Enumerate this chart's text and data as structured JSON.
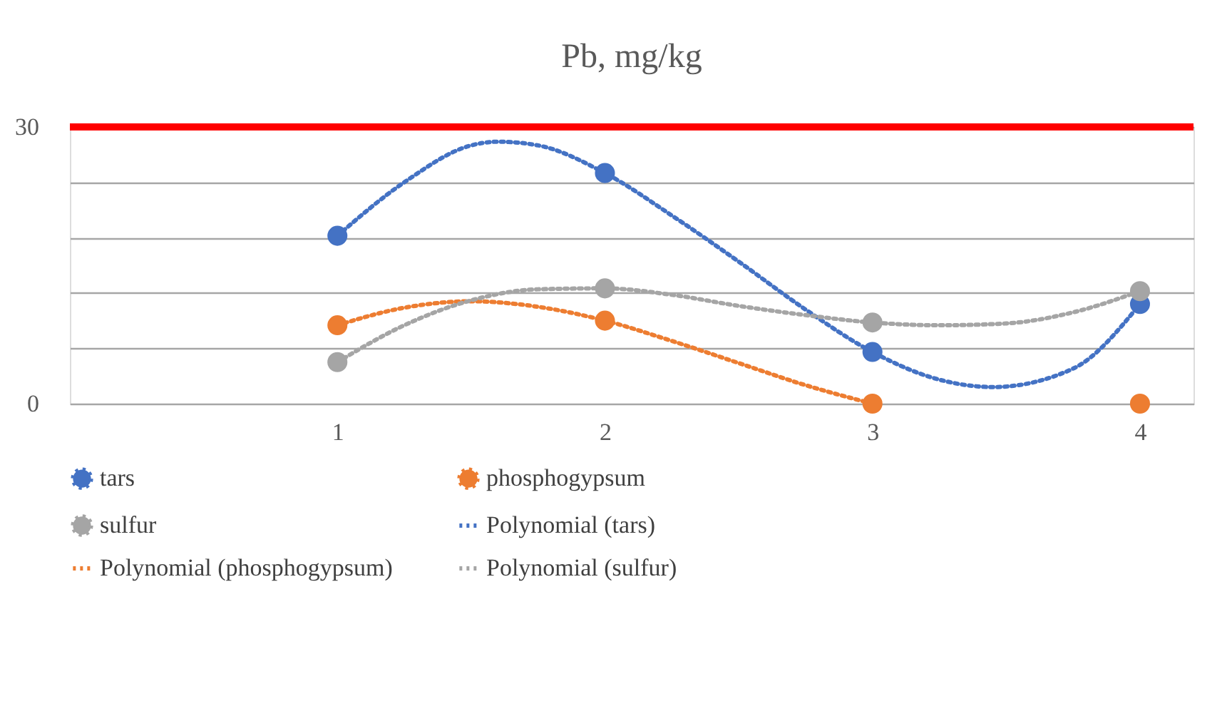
{
  "chart_data": {
    "type": "scatter",
    "title": "Pb, mg/kg",
    "x": [
      1,
      2,
      3,
      4
    ],
    "xlim": [
      0,
      4.2
    ],
    "xticks": [
      1,
      2,
      3,
      4
    ],
    "ylim": [
      0,
      30
    ],
    "yticks": [
      0,
      {
        "value": 6,
        "label": null
      },
      {
        "value": 12,
        "label": null
      },
      {
        "value": 18,
        "label": null
      },
      {
        "value": 24,
        "label": null
      },
      30
    ],
    "grid": "y",
    "legend": "bottom",
    "series": [
      {
        "name": "tars",
        "type": "scatter",
        "marker": "circle",
        "color": "#4472c4",
        "values": [
          18.2,
          25.0,
          5.6,
          10.8
        ]
      },
      {
        "name": "phosphogypsum",
        "type": "scatter",
        "marker": "circle",
        "color": "#ed7d31",
        "values": [
          8.5,
          9.0,
          0,
          0
        ]
      },
      {
        "name": "sulfur",
        "type": "scatter",
        "marker": "circle",
        "color": "#a5a5a5",
        "values": [
          4.5,
          12.5,
          8.8,
          12.2
        ]
      },
      {
        "name": "Polynomial (tars)",
        "type": "line",
        "marker": "none",
        "line_style": "dotted",
        "color": "#4472c4",
        "x": [
          1,
          1.25,
          1.5,
          1.6,
          1.75,
          2,
          2.25,
          2.5,
          2.75,
          3,
          3.25,
          3.45,
          3.75,
          4
        ],
        "values": [
          18.2,
          24.0,
          28.0,
          28.4,
          28.0,
          25.0,
          20.4,
          15.4,
          10.2,
          5.6,
          2.6,
          1.8,
          3.8,
          10.8
        ]
      },
      {
        "name": "Polynomial (phosphogypsum)",
        "type": "line",
        "marker": "none",
        "line_style": "dotted",
        "color": "#ed7d31",
        "x": [
          1,
          1.25,
          1.5,
          1.75,
          2,
          2.25,
          2.5,
          2.75,
          3
        ],
        "values": [
          8.5,
          10.4,
          11.1,
          10.5,
          9.0,
          6.8,
          4.4,
          2.0,
          0
        ]
      },
      {
        "name": "Polynomial (sulfur)",
        "type": "line",
        "marker": "none",
        "line_style": "dotted",
        "color": "#a5a5a5",
        "x": [
          1,
          1.25,
          1.5,
          1.75,
          2,
          2.25,
          2.5,
          2.75,
          3,
          3.25,
          3.5,
          3.75,
          4
        ],
        "values": [
          4.5,
          8.5,
          11.2,
          12.4,
          12.5,
          11.8,
          10.6,
          9.6,
          8.8,
          8.5,
          8.7,
          9.9,
          12.2
        ]
      }
    ],
    "ref_lines": [
      {
        "axis": "y",
        "value": 30,
        "color": "#ff0000"
      }
    ]
  }
}
